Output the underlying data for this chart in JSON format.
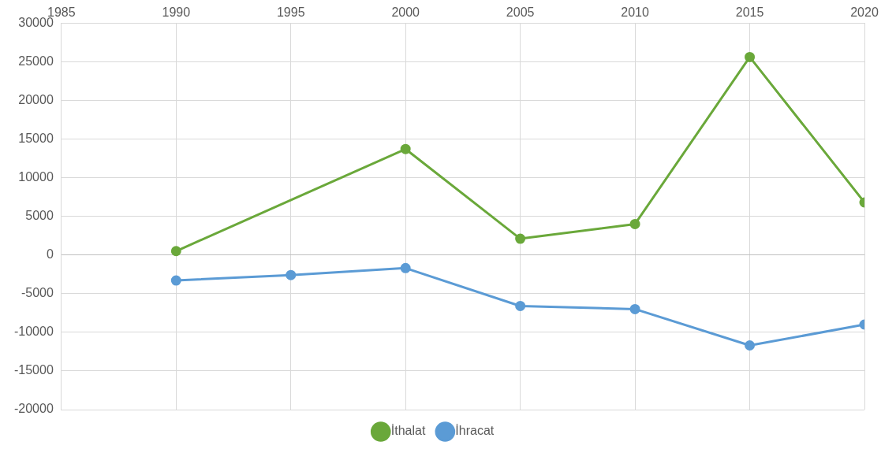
{
  "chart_data": {
    "type": "line",
    "x": [
      1990,
      1995,
      2000,
      2005,
      2010,
      2015,
      2020
    ],
    "series": [
      {
        "name": "İthalat",
        "color": "#6aa83a",
        "values": [
          500,
          null,
          13700,
          2100,
          4000,
          25600,
          6800
        ]
      },
      {
        "name": "İhracat",
        "color": "#5b9bd5",
        "values": [
          -3300,
          -2600,
          -1700,
          -6600,
          -7000,
          -11700,
          -9000
        ]
      }
    ],
    "xlim": [
      1985,
      2020
    ],
    "xticks": [
      1985,
      1990,
      1995,
      2000,
      2005,
      2010,
      2015,
      2020
    ],
    "ylim": [
      -20000,
      30000
    ],
    "yticks": [
      -20000,
      -15000,
      -10000,
      -5000,
      0,
      5000,
      10000,
      15000,
      20000,
      25000,
      30000
    ],
    "grid": true,
    "legend": "bottom",
    "marker": "circle",
    "line_style": "solid"
  }
}
